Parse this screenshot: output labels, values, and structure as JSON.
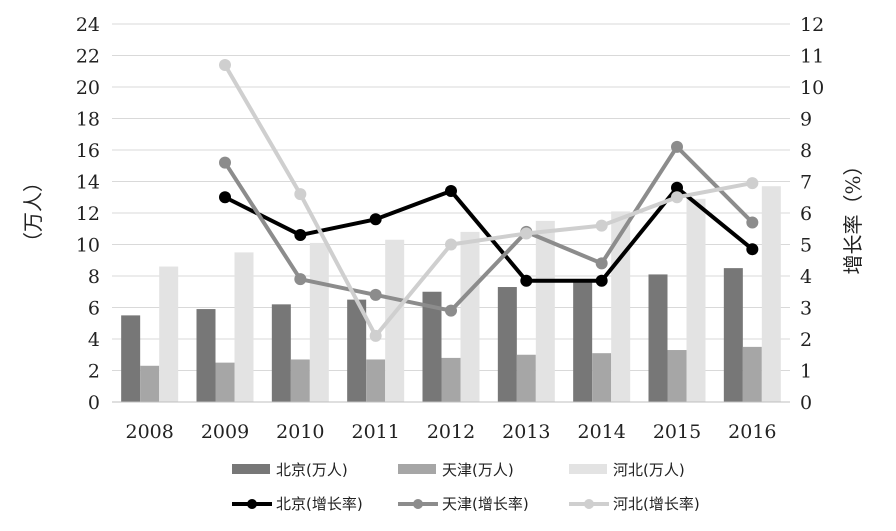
{
  "chart_data": {
    "type": "bar+line",
    "categories": [
      "2008",
      "2009",
      "2010",
      "2011",
      "2012",
      "2013",
      "2014",
      "2015",
      "2016"
    ],
    "left_axis": {
      "label": "（万人）",
      "ylim": [
        0,
        24
      ],
      "ticks": [
        "0",
        "2",
        "4",
        "6",
        "8",
        "10",
        "12",
        "14",
        "16",
        "18",
        "20",
        "22",
        "24"
      ]
    },
    "right_axis": {
      "label": "增长率（%）",
      "ylim": [
        0,
        12
      ],
      "ticks": [
        "0",
        "1",
        "2",
        "3",
        "4",
        "5",
        "6",
        "7",
        "8",
        "9",
        "10",
        "11",
        "12"
      ]
    },
    "bar_series": [
      {
        "name": "北京(万人)",
        "color": "#777777",
        "values": [
          5.5,
          5.9,
          6.2,
          6.5,
          7.0,
          7.3,
          7.8,
          8.1,
          8.5
        ]
      },
      {
        "name": "天津(万人)",
        "color": "#a6a6a6",
        "values": [
          2.3,
          2.5,
          2.7,
          2.7,
          2.8,
          3.0,
          3.1,
          3.3,
          3.5
        ]
      },
      {
        "name": "河北(万人)",
        "color": "#e3e3e3",
        "values": [
          8.6,
          9.5,
          10.1,
          10.3,
          10.8,
          11.5,
          12.1,
          12.9,
          13.7
        ]
      }
    ],
    "line_series": [
      {
        "name": "北京(增长率)",
        "color": "#000000",
        "values": [
          null,
          6.5,
          5.3,
          5.8,
          6.7,
          3.85,
          3.85,
          6.8,
          4.85
        ]
      },
      {
        "name": "天津(增长率)",
        "color": "#8c8c8c",
        "values": [
          null,
          7.6,
          3.9,
          3.4,
          2.9,
          5.4,
          4.4,
          8.1,
          5.7
        ]
      },
      {
        "name": "河北(增长率)",
        "color": "#cfcfcf",
        "values": [
          null,
          10.7,
          6.6,
          2.1,
          5.0,
          5.35,
          5.6,
          6.5,
          6.95
        ]
      }
    ],
    "grid": "horizontal",
    "legend_placement": "bottom"
  }
}
